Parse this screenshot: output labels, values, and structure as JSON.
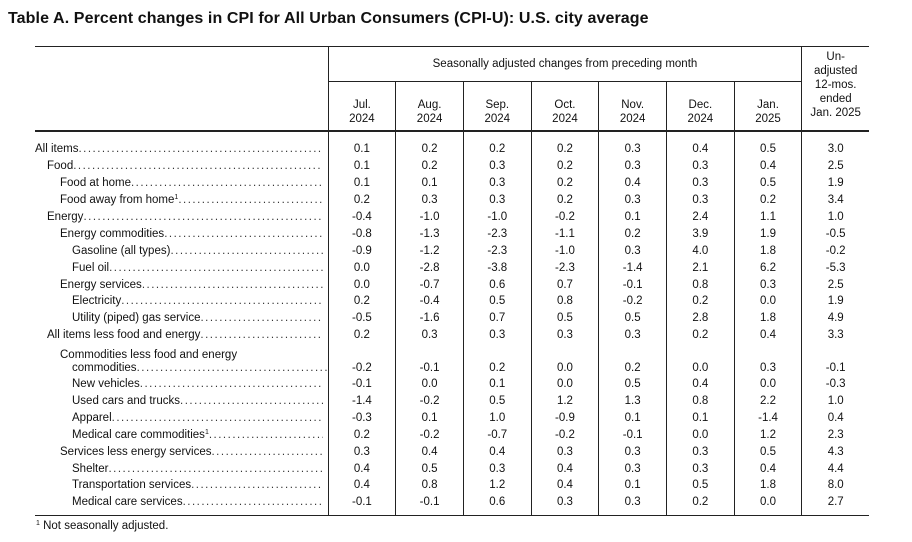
{
  "title": "Table A. Percent changes in CPI for All Urban Consumers (CPI-U): U.S. city average",
  "header": {
    "group_label": "Seasonally adjusted changes from preceding month",
    "unadjusted_label": [
      "Un-",
      "adjusted",
      "12-mos.",
      "ended",
      "Jan. 2025"
    ],
    "months": [
      {
        "m": "Jul.",
        "y": "2024"
      },
      {
        "m": "Aug.",
        "y": "2024"
      },
      {
        "m": "Sep.",
        "y": "2024"
      },
      {
        "m": "Oct.",
        "y": "2024"
      },
      {
        "m": "Nov.",
        "y": "2024"
      },
      {
        "m": "Dec.",
        "y": "2024"
      },
      {
        "m": "Jan.",
        "y": "2025"
      }
    ]
  },
  "rows": [
    {
      "label": "All items",
      "sup": "",
      "level": 0,
      "values": [
        "0.1",
        "0.2",
        "0.2",
        "0.2",
        "0.3",
        "0.4",
        "0.5",
        "3.0"
      ]
    },
    {
      "label": "Food",
      "sup": "",
      "level": 1,
      "values": [
        "0.1",
        "0.2",
        "0.3",
        "0.2",
        "0.3",
        "0.3",
        "0.4",
        "2.5"
      ]
    },
    {
      "label": "Food at home",
      "sup": "",
      "level": 2,
      "values": [
        "0.1",
        "0.1",
        "0.3",
        "0.2",
        "0.4",
        "0.3",
        "0.5",
        "1.9"
      ]
    },
    {
      "label": "Food away from home",
      "sup": "1",
      "level": 2,
      "values": [
        "0.2",
        "0.3",
        "0.3",
        "0.2",
        "0.3",
        "0.3",
        "0.2",
        "3.4"
      ]
    },
    {
      "label": "Energy",
      "sup": "",
      "level": 1,
      "values": [
        "-0.4",
        "-1.0",
        "-1.0",
        "-0.2",
        "0.1",
        "2.4",
        "1.1",
        "1.0"
      ]
    },
    {
      "label": "Energy commodities",
      "sup": "",
      "level": 2,
      "values": [
        "-0.8",
        "-1.3",
        "-2.3",
        "-1.1",
        "0.2",
        "3.9",
        "1.9",
        "-0.5"
      ]
    },
    {
      "label": "Gasoline (all types)",
      "sup": "",
      "level": 3,
      "values": [
        "-0.9",
        "-1.2",
        "-2.3",
        "-1.0",
        "0.3",
        "4.0",
        "1.8",
        "-0.2"
      ]
    },
    {
      "label": "Fuel oil",
      "sup": "",
      "level": 3,
      "values": [
        "0.0",
        "-2.8",
        "-3.8",
        "-2.3",
        "-1.4",
        "2.1",
        "6.2",
        "-5.3"
      ]
    },
    {
      "label": "Energy services",
      "sup": "",
      "level": 2,
      "values": [
        "0.0",
        "-0.7",
        "0.6",
        "0.7",
        "-0.1",
        "0.8",
        "0.3",
        "2.5"
      ]
    },
    {
      "label": "Electricity",
      "sup": "",
      "level": 3,
      "values": [
        "0.2",
        "-0.4",
        "0.5",
        "0.8",
        "-0.2",
        "0.2",
        "0.0",
        "1.9"
      ]
    },
    {
      "label": "Utility (piped) gas service",
      "sup": "",
      "level": 3,
      "values": [
        "-0.5",
        "-1.6",
        "0.7",
        "0.5",
        "0.5",
        "2.8",
        "1.8",
        "4.9"
      ]
    },
    {
      "label": "All items less food and energy",
      "sup": "",
      "level": 1,
      "values": [
        "0.2",
        "0.3",
        "0.3",
        "0.3",
        "0.3",
        "0.2",
        "0.4",
        "3.3"
      ]
    },
    {
      "label": "Commodities less food and energy",
      "label2": "commodities",
      "sup": "",
      "level": 2,
      "values": [
        "-0.2",
        "-0.1",
        "0.2",
        "0.0",
        "0.2",
        "0.0",
        "0.3",
        "-0.1"
      ]
    },
    {
      "label": "New vehicles",
      "sup": "",
      "level": 3,
      "values": [
        "-0.1",
        "0.0",
        "0.1",
        "0.0",
        "0.5",
        "0.4",
        "0.0",
        "-0.3"
      ]
    },
    {
      "label": "Used cars and trucks",
      "sup": "",
      "level": 3,
      "values": [
        "-1.4",
        "-0.2",
        "0.5",
        "1.2",
        "1.3",
        "0.8",
        "2.2",
        "1.0"
      ]
    },
    {
      "label": "Apparel",
      "sup": "",
      "level": 3,
      "values": [
        "-0.3",
        "0.1",
        "1.0",
        "-0.9",
        "0.1",
        "0.1",
        "-1.4",
        "0.4"
      ]
    },
    {
      "label": "Medical care commodities",
      "sup": "1",
      "level": 3,
      "values": [
        "0.2",
        "-0.2",
        "-0.7",
        "-0.2",
        "-0.1",
        "0.0",
        "1.2",
        "2.3"
      ]
    },
    {
      "label": "Services less energy services",
      "sup": "",
      "level": 2,
      "values": [
        "0.3",
        "0.4",
        "0.4",
        "0.3",
        "0.3",
        "0.3",
        "0.5",
        "4.3"
      ]
    },
    {
      "label": "Shelter",
      "sup": "",
      "level": 3,
      "values": [
        "0.4",
        "0.5",
        "0.3",
        "0.4",
        "0.3",
        "0.3",
        "0.4",
        "4.4"
      ]
    },
    {
      "label": "Transportation services",
      "sup": "",
      "level": 3,
      "values": [
        "0.4",
        "0.8",
        "1.2",
        "0.4",
        "0.1",
        "0.5",
        "1.8",
        "8.0"
      ]
    },
    {
      "label": "Medical care services",
      "sup": "",
      "level": 3,
      "values": [
        "-0.1",
        "-0.1",
        "0.6",
        "0.3",
        "0.3",
        "0.2",
        "0.0",
        "2.7"
      ]
    }
  ],
  "footnote": {
    "mark": "1",
    "text": " Not seasonally adjusted."
  }
}
